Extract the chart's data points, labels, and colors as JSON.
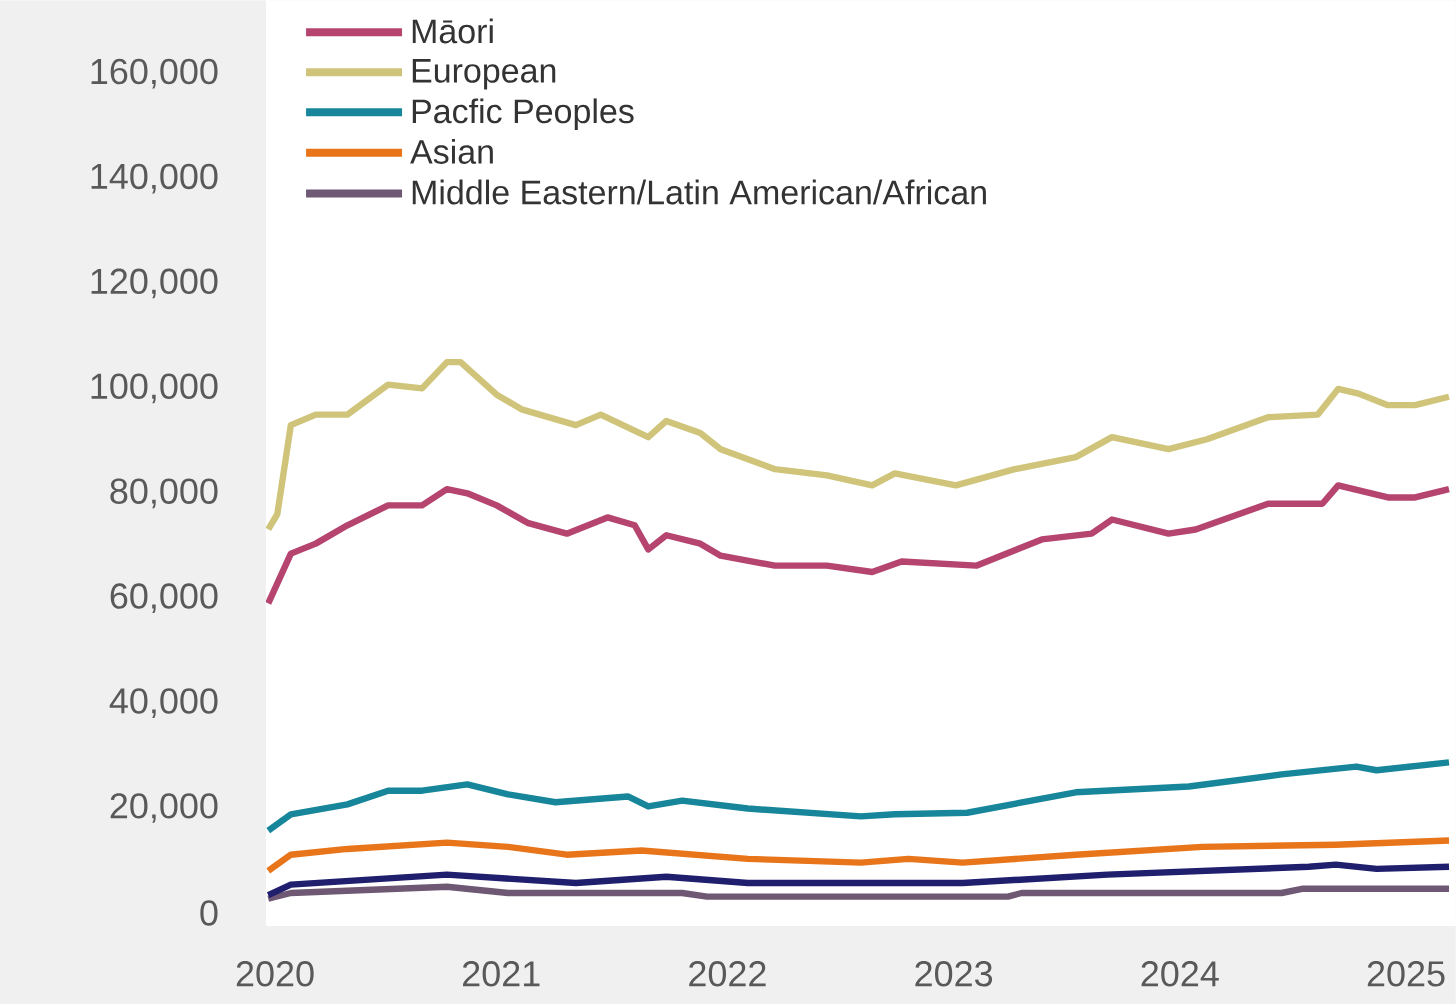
{
  "chart_data": {
    "type": "line",
    "xlim": [
      2019.96,
      2025.22
    ],
    "ylim": [
      -2500,
      174000
    ],
    "xticks": [
      2020,
      2021,
      2022,
      2023,
      2024,
      2025
    ],
    "yticks": [
      0,
      {
        "value": 20000,
        "label": "20,000"
      },
      {
        "value": 40000,
        "label": "40,000"
      },
      {
        "value": 60000,
        "label": "60,000"
      },
      {
        "value": 80000,
        "label": "80,000"
      },
      {
        "value": 100000,
        "label": "100,000"
      },
      {
        "value": 120000,
        "label": "120,000"
      },
      {
        "value": 140000,
        "label": "140,000"
      },
      {
        "value": 160000,
        "label": "160,000"
      }
    ],
    "grid": false,
    "legend": "top left",
    "marker": "none",
    "line_style": "solid",
    "series": [
      {
        "name": "Māori",
        "color": "#b5446e",
        "x": [
          2019.97,
          2020.07,
          2020.18,
          2020.32,
          2020.5,
          2020.65,
          2020.76,
          2020.85,
          2020.98,
          2021.12,
          2021.29,
          2021.47,
          2021.59,
          2021.65,
          2021.73,
          2021.88,
          2021.97,
          2022.21,
          2022.44,
          2022.64,
          2022.77,
          2023.1,
          2023.39,
          2023.61,
          2023.7,
          2023.95,
          2024.07,
          2024.39,
          2024.63,
          2024.7,
          2024.92,
          2025.04,
          2025.19
        ],
        "values": [
          59000,
          68500,
          70400,
          73900,
          77700,
          77700,
          80800,
          80000,
          77700,
          74300,
          72300,
          75400,
          73900,
          69300,
          72000,
          70400,
          68100,
          66200,
          66200,
          65000,
          67000,
          66200,
          71200,
          72300,
          75000,
          72300,
          73100,
          78000,
          78000,
          81500,
          79200,
          79200,
          80800
        ]
      },
      {
        "name": "European",
        "color": "#cfc47a",
        "x": [
          2019.97,
          2020.01,
          2020.07,
          2020.18,
          2020.32,
          2020.5,
          2020.65,
          2020.76,
          2020.82,
          2020.98,
          2021.09,
          2021.33,
          2021.44,
          2021.65,
          2021.73,
          2021.88,
          2021.97,
          2022.21,
          2022.44,
          2022.64,
          2022.74,
          2023.01,
          2023.27,
          2023.54,
          2023.7,
          2023.95,
          2024.12,
          2024.39,
          2024.61,
          2024.7,
          2024.79,
          2024.92,
          2025.04,
          2025.19
        ],
        "values": [
          73100,
          76000,
          93000,
          95000,
          95000,
          100700,
          100000,
          105000,
          105000,
          98800,
          96000,
          93000,
          95000,
          90700,
          93800,
          91500,
          88400,
          84600,
          83400,
          81500,
          83800,
          81500,
          84600,
          86900,
          90700,
          88400,
          90300,
          94500,
          95000,
          99900,
          99000,
          96800,
          96800,
          98400
        ]
      },
      {
        "name": "Pacfic Peoples",
        "color": "#17869a",
        "x": [
          2019.97,
          2020.07,
          2020.32,
          2020.5,
          2020.65,
          2020.85,
          2021.03,
          2021.24,
          2021.56,
          2021.65,
          2021.8,
          2022.09,
          2022.59,
          2022.74,
          2023.06,
          2023.54,
          2024.04,
          2024.45,
          2024.78,
          2024.87,
          2025.19
        ],
        "values": [
          15700,
          18800,
          20700,
          23300,
          23300,
          24500,
          22600,
          21100,
          22200,
          20300,
          21400,
          19900,
          18400,
          18800,
          19100,
          23000,
          24100,
          26400,
          27900,
          27200,
          28700
        ]
      },
      {
        "name": "Asian",
        "color": "#e8751a",
        "x": [
          2019.97,
          2020.07,
          2020.32,
          2020.76,
          2021.03,
          2021.29,
          2021.62,
          2022.09,
          2022.59,
          2022.8,
          2023.04,
          2023.54,
          2024.1,
          2024.69,
          2025.19
        ],
        "values": [
          8000,
          11100,
          12200,
          13400,
          12600,
          11100,
          11900,
          10300,
          9600,
          10300,
          9600,
          11100,
          12600,
          13000,
          13800
        ]
      },
      {
        "name": "Middle Eastern/Latin American/African",
        "color": "#6e5873",
        "x": [
          2019.97,
          2020.07,
          2020.76,
          2021.03,
          2021.8,
          2021.91,
          2022.59,
          2023.24,
          2023.3,
          2024.45,
          2024.54,
          2025.19
        ],
        "values": [
          2700,
          3800,
          5000,
          3800,
          3800,
          3100,
          3100,
          3100,
          3800,
          3800,
          4600,
          4600
        ]
      },
      {
        "color": "#1f1f6e",
        "x": [
          2019.97,
          2020.07,
          2020.76,
          2021.33,
          2021.73,
          2022.09,
          2022.59,
          2023.04,
          2023.68,
          2024.57,
          2024.69,
          2024.87,
          2025.19
        ],
        "values": [
          3400,
          5400,
          7300,
          5700,
          6900,
          5700,
          5700,
          5700,
          7300,
          8800,
          9200,
          8400,
          8800
        ]
      }
    ]
  }
}
